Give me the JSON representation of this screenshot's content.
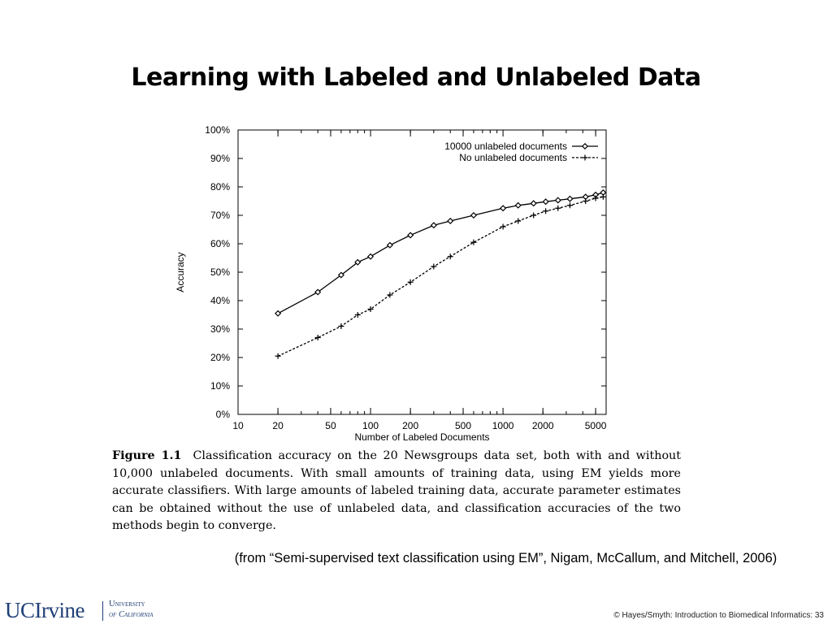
{
  "slide": {
    "title": "Learning with Labeled and Unlabeled Data",
    "caption_label": "Figure 1.1",
    "caption_text": "Classification accuracy on the 20 Newsgroups data set, both with and without 10,000 unlabeled documents. With small amounts of training data, using EM yields more accurate classifiers. With large amounts of labeled training data, accurate parameter estimates can be obtained without the use of unlabeled data, and classification accuracies of the two methods begin to converge.",
    "citation": "(from “Semi-supervised text classification using EM”, Nigam, McCallum, and Mitchell, 2006)",
    "footer": "© Hayes/Smyth: Introduction to Biomedical Informatics: 33",
    "logo": {
      "main": "UCIrvine",
      "line1": "University",
      "line2": "of California"
    }
  },
  "chart_data": {
    "type": "line",
    "title": "",
    "xlabel": "Number of Labeled Documents",
    "ylabel": "Accuracy",
    "xscale": "log",
    "xlim": [
      10,
      6000
    ],
    "ylim": [
      0,
      100
    ],
    "xticks": [
      10,
      20,
      50,
      100,
      200,
      500,
      1000,
      2000,
      5000
    ],
    "xtick_labels": [
      "10",
      "20",
      "50",
      "100",
      "200",
      "500",
      "1000",
      "2000",
      "5000"
    ],
    "yticks": [
      0,
      10,
      20,
      30,
      40,
      50,
      60,
      70,
      80,
      90,
      100
    ],
    "ytick_labels": [
      "0%",
      "10%",
      "20%",
      "30%",
      "40%",
      "50%",
      "60%",
      "70%",
      "80%",
      "90%",
      "100%"
    ],
    "grid": false,
    "legend_position": "top-right",
    "series": [
      {
        "name": "10000 unlabeled documents",
        "marker": "diamond",
        "linestyle": "solid",
        "x": [
          20,
          40,
          60,
          80,
          100,
          140,
          200,
          300,
          400,
          600,
          1000,
          1300,
          1700,
          2100,
          2600,
          3200,
          4200,
          5000,
          5700
        ],
        "y": [
          35.5,
          43,
          49,
          53.5,
          55.5,
          59.5,
          63,
          66.5,
          68,
          70,
          72.5,
          73.5,
          74.2,
          74.8,
          75.3,
          75.8,
          76.5,
          77.2,
          78
        ]
      },
      {
        "name": "No unlabeled documents",
        "marker": "plus",
        "linestyle": "dashed",
        "x": [
          20,
          40,
          60,
          80,
          100,
          140,
          200,
          300,
          400,
          600,
          1000,
          1300,
          1700,
          2100,
          2600,
          3200,
          4200,
          5000,
          5700
        ],
        "y": [
          20.5,
          27,
          31,
          35,
          37,
          42,
          46.5,
          52,
          55.5,
          60.5,
          66,
          68,
          70,
          71.5,
          72.5,
          73.5,
          75,
          76,
          76.5
        ]
      }
    ]
  }
}
